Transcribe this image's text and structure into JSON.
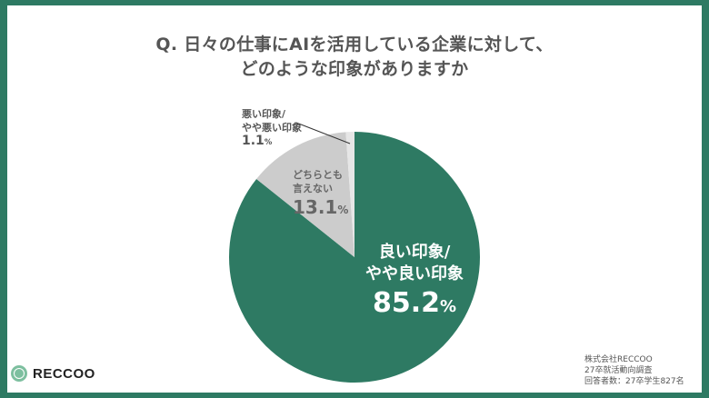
{
  "title": {
    "line1": "Q. 日々の仕事にAIを活用している企業に対して、",
    "line2": "どのような印象がありますか"
  },
  "chart_data": {
    "type": "pie",
    "title": "Q. 日々の仕事にAIを活用している企業に対して、どのような印象がありますか",
    "categories": [
      "良い印象/やや良い印象",
      "どちらとも言えない",
      "悪い印象/やや悪い印象"
    ],
    "values": [
      85.2,
      13.1,
      1.1
    ],
    "unit": "%",
    "colors": [
      "#2e7a63",
      "#cccccc",
      "#e6e6e6"
    ],
    "start_angle": "12 o'clock, clockwise",
    "legend": "none (direct labels)"
  },
  "labels": {
    "good": {
      "line1": "良い印象/",
      "line2": "やや良い印象",
      "value": "85.2",
      "unit": "%"
    },
    "neutral": {
      "line1": "どちらとも",
      "line2": "言えない",
      "value": "13.1",
      "unit": "%"
    },
    "bad": {
      "line1": "悪い印象/",
      "line2": "やや悪い印象",
      "value": "1.1",
      "unit": "%"
    }
  },
  "brand": {
    "name": "RECCOO"
  },
  "source": {
    "line1": "株式会社RECCOO",
    "line2": "27卒就活動向調査",
    "line3": "回答者数：27卒学生827名"
  },
  "colors": {
    "frame": "#2e7a63",
    "positive": "#2e7a63",
    "neutral": "#cccccc",
    "negative": "#e6e6e6"
  }
}
